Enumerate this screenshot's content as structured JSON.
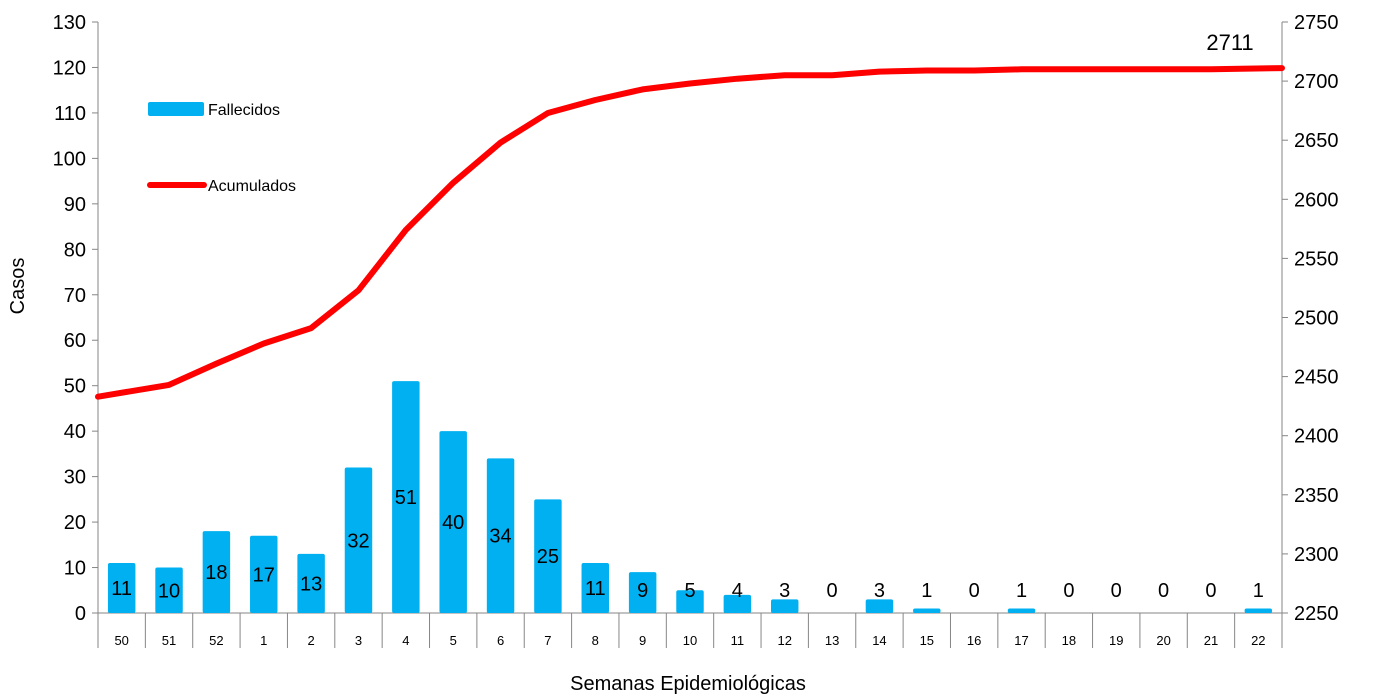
{
  "chart_data": {
    "type": "bar+line",
    "xlabel": "Semanas Epidemiológicas",
    "ylabel": "Casos",
    "categories": [
      "50",
      "51",
      "52",
      "1",
      "2",
      "3",
      "4",
      "5",
      "6",
      "7",
      "8",
      "9",
      "10",
      "11",
      "12",
      "13",
      "14",
      "15",
      "16",
      "17",
      "18",
      "19",
      "20",
      "21",
      "22"
    ],
    "series": [
      {
        "name": "Fallecidos",
        "type": "bar",
        "axis": "left",
        "color": "#00B0F0",
        "values": [
          11,
          10,
          18,
          17,
          13,
          32,
          51,
          40,
          34,
          25,
          11,
          9,
          5,
          4,
          3,
          0,
          3,
          1,
          0,
          1,
          0,
          0,
          0,
          0,
          1
        ]
      },
      {
        "name": "Acumulados",
        "type": "line",
        "axis": "right",
        "color": "#FF0000",
        "values": [
          2433,
          2443,
          2461,
          2478,
          2491,
          2523,
          2574,
          2614,
          2648,
          2673,
          2684,
          2693,
          2698,
          2702,
          2705,
          2705,
          2708,
          2709,
          2709,
          2710,
          2710,
          2710,
          2710,
          2710,
          2711
        ]
      }
    ],
    "ylim_left": [
      0,
      130
    ],
    "yticks_left": [
      0,
      10,
      20,
      30,
      40,
      50,
      60,
      70,
      80,
      90,
      100,
      110,
      120,
      130
    ],
    "ylim_right": [
      2250,
      2750
    ],
    "yticks_right": [
      2250,
      2300,
      2350,
      2400,
      2450,
      2500,
      2550,
      2600,
      2650,
      2700,
      2750
    ],
    "annotation": "2711",
    "legend_position": "top-left",
    "grid": false
  }
}
